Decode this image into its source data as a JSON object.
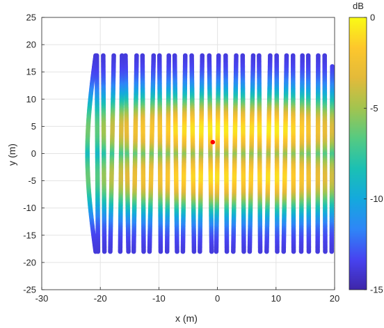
{
  "chart_data": {
    "type": "scatter",
    "title": "",
    "xlabel": "x (m)",
    "ylabel": "y (m)",
    "xlim": [
      -30,
      20
    ],
    "ylim": [
      -25,
      25
    ],
    "xticks": [
      "-30",
      "-20",
      "-10",
      "0",
      "10",
      "20"
    ],
    "yticks": [
      "-25",
      "-20",
      "-15",
      "-10",
      "-5",
      "0",
      "5",
      "10",
      "15",
      "20",
      "25"
    ],
    "grid": true,
    "colorbar": {
      "title": "dB",
      "range": [
        -15,
        0
      ],
      "ticks": [
        "-15",
        "-10",
        "-5",
        "0"
      ],
      "colormap": "parula",
      "colors": [
        "#3E26A8",
        "#4743F0",
        "#2E86F7",
        "#14A9DD",
        "#1BC0B4",
        "#55CA82",
        "#A2C44F",
        "#E3BA3A",
        "#FDC72C",
        "#F9FB15"
      ]
    },
    "marker": {
      "label": "source",
      "x": -0.8,
      "y": 2.1,
      "color": "#ff0000"
    },
    "series": [
      {
        "x_top": -20.6,
        "x_bottom": -20.4,
        "y_top": 18,
        "y_bottom": -18,
        "bulge": 0,
        "peak_db": -6.5
      },
      {
        "x_top": -19.5,
        "x_bottom": -19.3,
        "y_top": 18,
        "y_bottom": -18,
        "bulge": 0,
        "peak_db": -5
      },
      {
        "x_top": -17.7,
        "x_bottom": -18.3,
        "y_top": 18,
        "y_bottom": -18,
        "bulge": 0,
        "peak_db": -4
      },
      {
        "x_top": -16.3,
        "x_bottom": -16.6,
        "y_top": 18,
        "y_bottom": -18,
        "bulge": 0,
        "peak_db": -3.5
      },
      {
        "x_top": -15.7,
        "x_bottom": -15.2,
        "y_top": 18,
        "y_bottom": -18,
        "bulge": 0,
        "peak_db": -3
      },
      {
        "x_top": -13.8,
        "x_bottom": -14.3,
        "y_top": 18,
        "y_bottom": -18,
        "bulge": 0,
        "peak_db": -2.5
      },
      {
        "x_top": -12.8,
        "x_bottom": -12.6,
        "y_top": 18,
        "y_bottom": -18,
        "bulge": 0,
        "peak_db": -2
      },
      {
        "x_top": -10.9,
        "x_bottom": -11.6,
        "y_top": 18,
        "y_bottom": -18,
        "bulge": 0,
        "peak_db": -2
      },
      {
        "x_top": -9.9,
        "x_bottom": -9.7,
        "y_top": 18,
        "y_bottom": -18,
        "bulge": 0,
        "peak_db": -2
      },
      {
        "x_top": -8.3,
        "x_bottom": -8.6,
        "y_top": 18,
        "y_bottom": -18,
        "bulge": 0,
        "peak_db": -1.5
      },
      {
        "x_top": -7.3,
        "x_bottom": -6.9,
        "y_top": 18,
        "y_bottom": -18,
        "bulge": 0,
        "peak_db": -1
      },
      {
        "x_top": -5.5,
        "x_bottom": -5.9,
        "y_top": 18,
        "y_bottom": -18,
        "bulge": 0,
        "peak_db": -1
      },
      {
        "x_top": -4.4,
        "x_bottom": -4.0,
        "y_top": 18,
        "y_bottom": -18,
        "bulge": 0,
        "peak_db": -0.8
      },
      {
        "x_top": -2.6,
        "x_bottom": -3.0,
        "y_top": 18,
        "y_bottom": -18,
        "bulge": 0,
        "peak_db": -0.6
      },
      {
        "x_top": -1.4,
        "x_bottom": -1.0,
        "y_top": 18,
        "y_bottom": -18,
        "bulge": 0,
        "peak_db": -0.5
      },
      {
        "x_top": 0.2,
        "x_bottom": -0.2,
        "y_top": 18,
        "y_bottom": -18,
        "bulge": 0,
        "peak_db": -0.5
      },
      {
        "x_top": 1.4,
        "x_bottom": 1.6,
        "y_top": 18,
        "y_bottom": -18,
        "bulge": 0,
        "peak_db": -0.6
      },
      {
        "x_top": 3.2,
        "x_bottom": 2.7,
        "y_top": 18,
        "y_bottom": -18,
        "bulge": 0,
        "peak_db": -0.8
      },
      {
        "x_top": 4.3,
        "x_bottom": 4.5,
        "y_top": 18,
        "y_bottom": -18,
        "bulge": 0,
        "peak_db": -1
      },
      {
        "x_top": 6.1,
        "x_bottom": 5.5,
        "y_top": 18,
        "y_bottom": -18,
        "bulge": 0,
        "peak_db": -1
      },
      {
        "x_top": 7.1,
        "x_bottom": 7.3,
        "y_top": 18,
        "y_bottom": -18,
        "bulge": 0,
        "peak_db": -0.8
      },
      {
        "x_top": 9.0,
        "x_bottom": 8.4,
        "y_top": 18,
        "y_bottom": -18,
        "bulge": 0,
        "peak_db": -0.5
      },
      {
        "x_top": 10.1,
        "x_bottom": 10.2,
        "y_top": 18,
        "y_bottom": -18,
        "bulge": 0,
        "peak_db": -0.5
      },
      {
        "x_top": 11.8,
        "x_bottom": 11.3,
        "y_top": 18,
        "y_bottom": -18,
        "bulge": 0,
        "peak_db": -0.8
      },
      {
        "x_top": 12.9,
        "x_bottom": 13.0,
        "y_top": 18,
        "y_bottom": -18,
        "bulge": 0,
        "peak_db": -1.2
      },
      {
        "x_top": 14.5,
        "x_bottom": 14.3,
        "y_top": 18,
        "y_bottom": -18,
        "bulge": 0,
        "peak_db": -1.5
      },
      {
        "x_top": 15.5,
        "x_bottom": 15.6,
        "y_top": 18,
        "y_bottom": -18,
        "bulge": 0,
        "peak_db": -2
      },
      {
        "x_top": 17.2,
        "x_bottom": 17.1,
        "y_top": 18,
        "y_bottom": -18,
        "bulge": 0,
        "peak_db": -2.5
      },
      {
        "x_top": 18.3,
        "x_bottom": 18.4,
        "y_top": 18,
        "y_bottom": -18,
        "bulge": 0,
        "peak_db": -3
      },
      {
        "x_top": 19.6,
        "x_bottom": 19.5,
        "y_top": 16,
        "y_bottom": -18,
        "bulge": 0,
        "peak_db": -3.5
      },
      {
        "x_top": -20.8,
        "x_bottom": -20.8,
        "y_top": 18,
        "y_bottom": -18,
        "bulge": -1.4,
        "peak_db": -6
      }
    ]
  }
}
